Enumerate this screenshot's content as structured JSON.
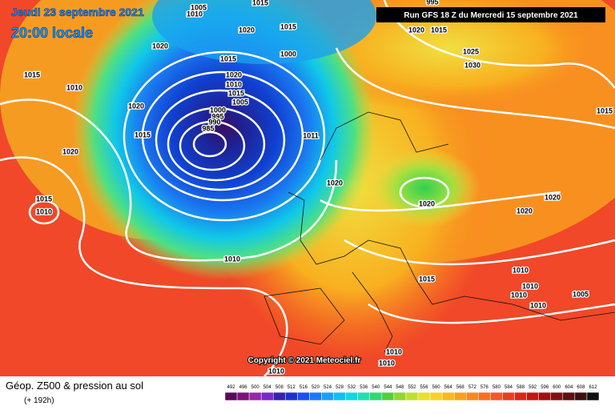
{
  "header": {
    "date": "Jeudi 23 septembre 2021",
    "time": "20:00 locale",
    "run": "Run GFS 18 Z du Mercredi 15 septembre 2021"
  },
  "copyright": "Copyright © 2021 Meteociel.fr",
  "caption": {
    "title": "Géop. Z500 & pression au sol",
    "lead": "(+ 192h)"
  },
  "scale": [
    "492",
    "496",
    "500",
    "504",
    "508",
    "512",
    "516",
    "520",
    "524",
    "528",
    "532",
    "536",
    "540",
    "544",
    "548",
    "552",
    "556",
    "560",
    "564",
    "568",
    "572",
    "576",
    "580",
    "584",
    "588",
    "592",
    "596",
    "600",
    "604",
    "608",
    "612"
  ],
  "isobar_labels": [
    "1005",
    "1010",
    "1015",
    "1020",
    "1015",
    "1000",
    "1020",
    "1015",
    "1010",
    "1015",
    "1020",
    "1010",
    "1015",
    "1005",
    "1000",
    "995",
    "990",
    "985",
    "1020",
    "1015",
    "1020",
    "1011",
    "1020",
    "1015",
    "1010",
    "1020",
    "1020",
    "1020",
    "1010",
    "1015",
    "1010",
    "1010",
    "1010",
    "1005",
    "1010",
    "1010",
    "1010",
    "1010",
    "1020",
    "1025",
    "1030",
    "1015",
    "995",
    "1015"
  ]
}
